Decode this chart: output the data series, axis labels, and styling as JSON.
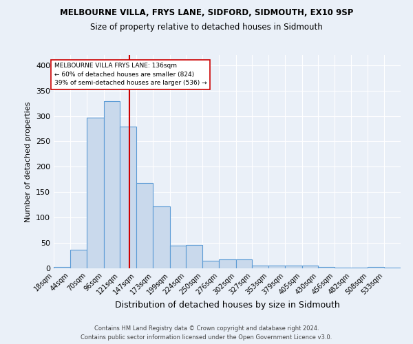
{
  "title": "MELBOURNE VILLA, FRYS LANE, SIDFORD, SIDMOUTH, EX10 9SP",
  "subtitle": "Size of property relative to detached houses in Sidmouth",
  "xlabel": "Distribution of detached houses by size in Sidmouth",
  "ylabel": "Number of detached properties",
  "bar_labels": [
    "18sqm",
    "44sqm",
    "70sqm",
    "96sqm",
    "121sqm",
    "147sqm",
    "173sqm",
    "199sqm",
    "224sqm",
    "250sqm",
    "276sqm",
    "302sqm",
    "327sqm",
    "353sqm",
    "379sqm",
    "405sqm",
    "430sqm",
    "456sqm",
    "482sqm",
    "508sqm",
    "533sqm"
  ],
  "bar_values": [
    3,
    37,
    297,
    329,
    279,
    168,
    122,
    45,
    46,
    15,
    17,
    18,
    5,
    6,
    6,
    6,
    3,
    2,
    1,
    3,
    1
  ],
  "bar_color": "#c9d9ec",
  "bar_edge_color": "#5b9bd5",
  "property_line_x": 136,
  "bin_edges": [
    18,
    44,
    70,
    96,
    121,
    147,
    173,
    199,
    224,
    250,
    276,
    302,
    327,
    353,
    379,
    405,
    430,
    456,
    482,
    508,
    533,
    559
  ],
  "annotation_title": "MELBOURNE VILLA FRYS LANE: 136sqm",
  "annotation_line1": "← 60% of detached houses are smaller (824)",
  "annotation_line2": "39% of semi-detached houses are larger (536) →",
  "vline_color": "#cc0000",
  "background_color": "#eaf0f8",
  "grid_color": "#ffffff",
  "footer1": "Contains HM Land Registry data © Crown copyright and database right 2024.",
  "footer2": "Contains public sector information licensed under the Open Government Licence v3.0.",
  "ylim": [
    0,
    420
  ],
  "yticks": [
    0,
    50,
    100,
    150,
    200,
    250,
    300,
    350,
    400
  ]
}
